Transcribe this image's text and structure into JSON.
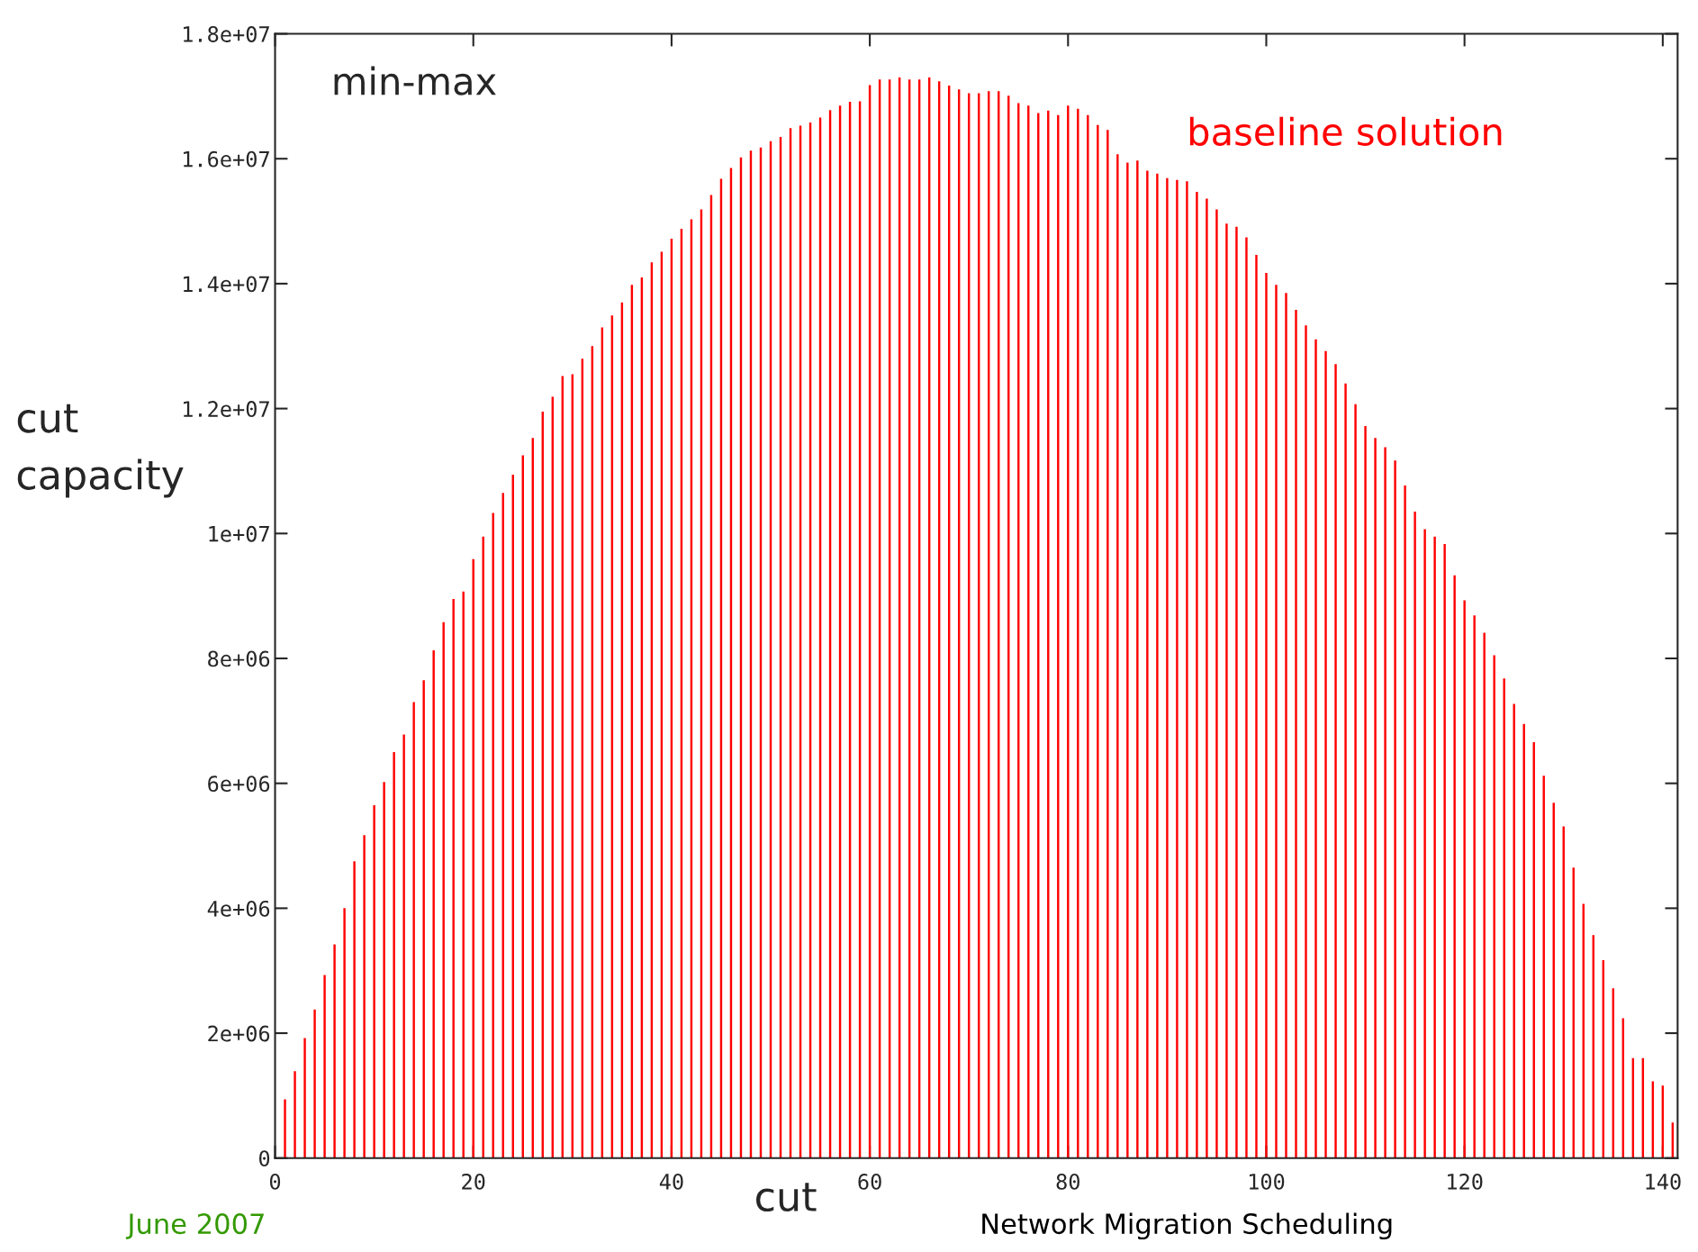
{
  "chart_data": {
    "type": "bar",
    "title": "min-max",
    "xlabel": "cut",
    "ylabel": "cut\ncapacity",
    "x": [
      1,
      2,
      3,
      4,
      5,
      6,
      7,
      8,
      9,
      10,
      11,
      12,
      13,
      14,
      15,
      16,
      17,
      18,
      19,
      20,
      21,
      22,
      23,
      24,
      25,
      26,
      27,
      28,
      29,
      30,
      31,
      32,
      33,
      34,
      35,
      36,
      37,
      38,
      39,
      40,
      41,
      42,
      43,
      44,
      45,
      46,
      47,
      48,
      49,
      50,
      51,
      52,
      53,
      54,
      55,
      56,
      57,
      58,
      59,
      60,
      61,
      62,
      63,
      64,
      65,
      66,
      67,
      68,
      69,
      70,
      71,
      72,
      73,
      74,
      75,
      76,
      77,
      78,
      79,
      80,
      81,
      82,
      83,
      84,
      85,
      86,
      87,
      88,
      89,
      90,
      91,
      92,
      93,
      94,
      95,
      96,
      97,
      98,
      99,
      100,
      101,
      102,
      103,
      104,
      105,
      106,
      107,
      108,
      109,
      110,
      111,
      112,
      113,
      114,
      115,
      116,
      117,
      118,
      119,
      120,
      121,
      122,
      123,
      124,
      125,
      126,
      127,
      128,
      129,
      130,
      131,
      132,
      133,
      134,
      135,
      136,
      137,
      138,
      139,
      140,
      141
    ],
    "series": [
      {
        "name": "baseline solution",
        "color": "#ff0000",
        "values": [
          940000,
          1390000,
          1920000,
          2380000,
          2930000,
          3420000,
          4000000,
          4750000,
          5170000,
          5650000,
          6020000,
          6500000,
          6780000,
          7300000,
          7650000,
          8130000,
          8580000,
          8950000,
          9070000,
          9590000,
          9950000,
          10330000,
          10650000,
          10940000,
          11250000,
          11530000,
          11950000,
          12190000,
          12520000,
          12550000,
          12800000,
          13000000,
          13300000,
          13490000,
          13700000,
          13980000,
          14100000,
          14340000,
          14510000,
          14720000,
          14880000,
          15030000,
          15190000,
          15420000,
          15680000,
          15850000,
          16020000,
          16130000,
          16180000,
          16280000,
          16350000,
          16490000,
          16530000,
          16580000,
          16660000,
          16780000,
          16850000,
          16910000,
          16920000,
          17180000,
          17270000,
          17270000,
          17300000,
          17270000,
          17270000,
          17300000,
          17240000,
          17170000,
          17110000,
          17050000,
          17050000,
          17080000,
          17080000,
          17010000,
          16890000,
          16850000,
          16730000,
          16770000,
          16700000,
          16850000,
          16800000,
          16700000,
          16540000,
          16460000,
          16070000,
          15940000,
          15970000,
          15810000,
          15760000,
          15690000,
          15660000,
          15640000,
          15470000,
          15360000,
          15190000,
          14960000,
          14910000,
          14740000,
          14460000,
          14170000,
          13980000,
          13850000,
          13580000,
          13330000,
          13110000,
          12920000,
          12710000,
          12400000,
          12070000,
          11720000,
          11530000,
          11380000,
          11170000,
          10770000,
          10350000,
          10070000,
          9950000,
          9830000,
          9330000,
          8930000,
          8690000,
          8410000,
          8050000,
          7680000,
          7270000,
          6950000,
          6660000,
          6120000,
          5690000,
          5310000,
          4650000,
          4070000,
          3570000,
          3170000,
          2720000,
          2240000,
          1600000,
          1600000,
          1230000,
          1160000,
          570000
        ]
      }
    ],
    "xlim": [
      0,
      141.5
    ],
    "ylim": [
      0,
      18000000
    ],
    "xticks": [
      0,
      20,
      40,
      60,
      80,
      100,
      120,
      140
    ],
    "yticks": [
      0,
      {
        "value": 2000000,
        "label": "2e+06"
      },
      {
        "value": 4000000,
        "label": "4e+06"
      },
      {
        "value": 6000000,
        "label": "6e+06"
      },
      {
        "value": 8000000,
        "label": "8e+06"
      },
      {
        "value": 10000000,
        "label": "1e+07"
      },
      {
        "value": 12000000,
        "label": "1.2e+07"
      },
      {
        "value": 14000000,
        "label": "1.4e+07"
      },
      {
        "value": 16000000,
        "label": "1.6e+07"
      },
      {
        "value": 18000000,
        "label": "1.8e+07"
      }
    ],
    "grid": false,
    "legend": "top right",
    "annotations": [
      "June 2007",
      "Network Migration Scheduling"
    ]
  }
}
